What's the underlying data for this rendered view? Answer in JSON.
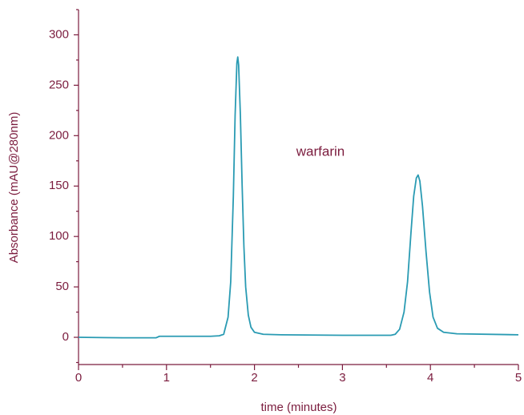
{
  "chart_data": {
    "type": "line",
    "annotation": "warfarin",
    "xlabel": "time (minutes)",
    "ylabel": "Absorbance (mAU@280nm)",
    "axis_color": "#7b1c3e",
    "xlim": [
      0,
      5
    ],
    "xticks": [
      0,
      1,
      2,
      3,
      4,
      5
    ],
    "xminorticks": [
      0.5,
      1.5,
      2.5,
      3.5,
      4.5
    ],
    "ylim": [
      -27,
      325
    ],
    "yticks": [
      0,
      50,
      100,
      150,
      200,
      250,
      300
    ],
    "yminorticks": [
      -25,
      25,
      75,
      125,
      175,
      225,
      275,
      325
    ],
    "series": [
      {
        "color": "#2a9bb3",
        "x": [
          0,
          0.5,
          0.88,
          0.92,
          1.2,
          1.5,
          1.6,
          1.65,
          1.7,
          1.73,
          1.76,
          1.78,
          1.8,
          1.81,
          1.82,
          1.84,
          1.86,
          1.88,
          1.9,
          1.93,
          1.96,
          2.0,
          2.1,
          2.3,
          3.0,
          3.55,
          3.6,
          3.65,
          3.7,
          3.74,
          3.78,
          3.81,
          3.84,
          3.86,
          3.88,
          3.91,
          3.95,
          3.99,
          4.03,
          4.08,
          4.15,
          4.3,
          5.0
        ],
        "values": [
          0,
          -0.5,
          -0.5,
          1,
          1,
          1,
          1.5,
          3,
          20,
          55,
          140,
          220,
          272,
          278,
          270,
          220,
          150,
          90,
          50,
          22,
          10,
          5,
          3,
          2.5,
          2,
          2,
          3,
          8,
          25,
          55,
          105,
          140,
          158,
          161,
          155,
          130,
          85,
          45,
          20,
          9,
          5,
          3.5,
          2.5
        ]
      }
    ]
  }
}
